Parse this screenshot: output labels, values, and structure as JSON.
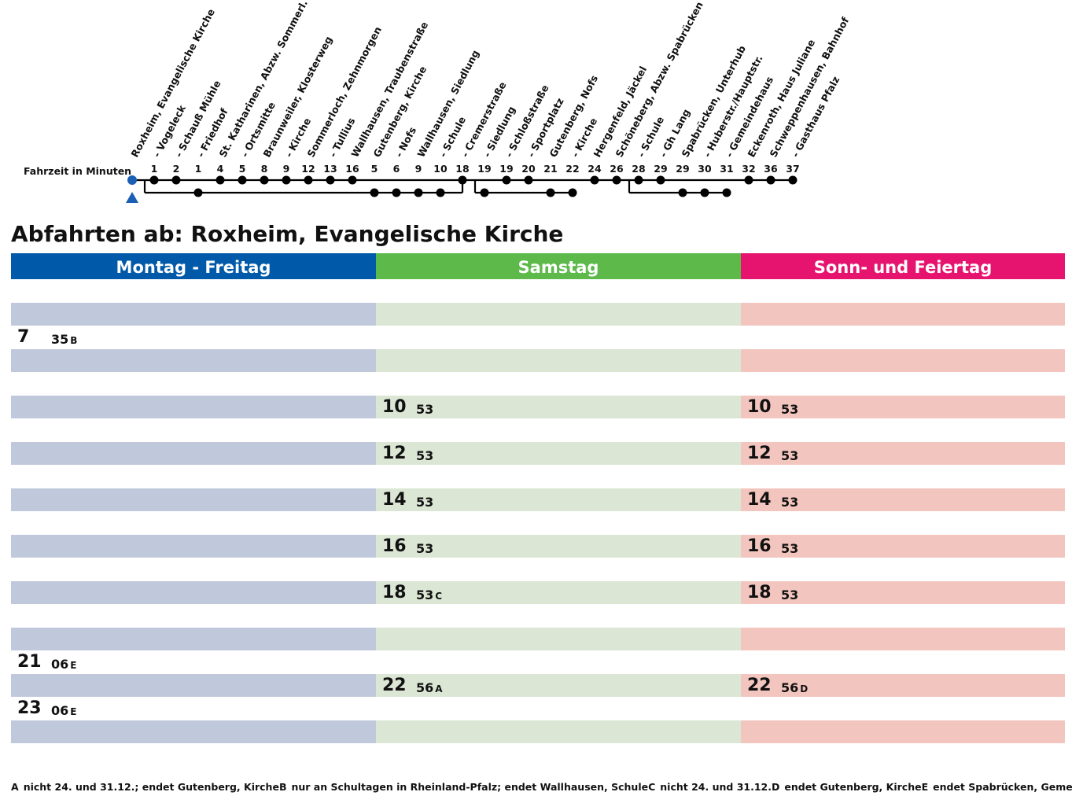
{
  "route": {
    "travel_time_label": "Fahrzeit in Minuten",
    "stops": [
      {
        "name": "Roxheim, Evangelische Kirche",
        "minutes": ""
      },
      {
        "name": "- Vogeleck",
        "minutes": "1"
      },
      {
        "name": "- Schauß Mühle",
        "minutes": "2"
      },
      {
        "name": "- Friedhof",
        "minutes": "1"
      },
      {
        "name": "St. Katharinen, Abzw. Sommerl.",
        "minutes": "4"
      },
      {
        "name": "- Ortsmitte",
        "minutes": "5"
      },
      {
        "name": "Braunweiler, Klosterweg",
        "minutes": "8"
      },
      {
        "name": "- Kirche",
        "minutes": "9"
      },
      {
        "name": "Sommerloch, Zehnmorgen",
        "minutes": "12"
      },
      {
        "name": "- Tullius",
        "minutes": "13"
      },
      {
        "name": "Wallhausen, Traubenstraße",
        "minutes": "16"
      },
      {
        "name": "Gutenberg, Kirche",
        "minutes": "5"
      },
      {
        "name": "- Nofs",
        "minutes": "6"
      },
      {
        "name": "Wallhausen, Siedlung",
        "minutes": "9"
      },
      {
        "name": "- Schule",
        "minutes": "10"
      },
      {
        "name": "- Cremerstraße",
        "minutes": "18"
      },
      {
        "name": "- Siedlung",
        "minutes": "19"
      },
      {
        "name": "- Schloßstraße",
        "minutes": "19"
      },
      {
        "name": "- Sportplatz",
        "minutes": "20"
      },
      {
        "name": "Gutenberg, Nofs",
        "minutes": "21"
      },
      {
        "name": "- Kirche",
        "minutes": "22"
      },
      {
        "name": "Hergenfeld, Jäckel",
        "minutes": "24"
      },
      {
        "name": "Schöneberg, Abzw. Spabrücken",
        "minutes": "26"
      },
      {
        "name": "- Schule",
        "minutes": "28"
      },
      {
        "name": "- Gh Lang",
        "minutes": "29"
      },
      {
        "name": "Spabrücken, Unterhub",
        "minutes": "29"
      },
      {
        "name": "- Huberstr./Hauptstr.",
        "minutes": "30"
      },
      {
        "name": "- Gemeindehaus",
        "minutes": "31"
      },
      {
        "name": "Eckenroth, Haus Juliane",
        "minutes": "32"
      },
      {
        "name": "Schweppenhausen, Bahnhof",
        "minutes": "36"
      },
      {
        "name": "- Gasthaus Pfalz",
        "minutes": "37"
      }
    ],
    "colors": {
      "line": "#000000",
      "origin": "#1a5fb4"
    }
  },
  "title": "Abfahrten ab: Roxheim, Evangelische Kirche",
  "columns": [
    {
      "label": "Montag - Freitag",
      "header_color": "#0059a9",
      "shade_color": "#c0c9dc",
      "rows": [
        {
          "hour": "",
          "mins": "",
          "note": ""
        },
        {
          "hour": "",
          "mins": "",
          "note": ""
        },
        {
          "hour": "7",
          "mins": "35",
          "note": "B"
        },
        {
          "hour": "",
          "mins": "",
          "note": ""
        },
        {
          "hour": "",
          "mins": "",
          "note": ""
        },
        {
          "hour": "",
          "mins": "",
          "note": ""
        },
        {
          "hour": "",
          "mins": "",
          "note": ""
        },
        {
          "hour": "",
          "mins": "",
          "note": ""
        },
        {
          "hour": "",
          "mins": "",
          "note": ""
        },
        {
          "hour": "",
          "mins": "",
          "note": ""
        },
        {
          "hour": "",
          "mins": "",
          "note": ""
        },
        {
          "hour": "",
          "mins": "",
          "note": ""
        },
        {
          "hour": "",
          "mins": "",
          "note": ""
        },
        {
          "hour": "",
          "mins": "",
          "note": ""
        },
        {
          "hour": "",
          "mins": "",
          "note": ""
        },
        {
          "hour": "",
          "mins": "",
          "note": ""
        },
        {
          "hour": "21",
          "mins": "06",
          "note": "E"
        },
        {
          "hour": "",
          "mins": "",
          "note": ""
        },
        {
          "hour": "23",
          "mins": "06",
          "note": "E"
        },
        {
          "hour": "",
          "mins": "",
          "note": ""
        }
      ]
    },
    {
      "label": "Samstag",
      "header_color": "#5cb94a",
      "shade_color": "#dbe6d4",
      "rows": [
        {
          "hour": "",
          "mins": "",
          "note": ""
        },
        {
          "hour": "",
          "mins": "",
          "note": ""
        },
        {
          "hour": "",
          "mins": "",
          "note": ""
        },
        {
          "hour": "",
          "mins": "",
          "note": ""
        },
        {
          "hour": "",
          "mins": "",
          "note": ""
        },
        {
          "hour": "10",
          "mins": "53",
          "note": ""
        },
        {
          "hour": "",
          "mins": "",
          "note": ""
        },
        {
          "hour": "12",
          "mins": "53",
          "note": ""
        },
        {
          "hour": "",
          "mins": "",
          "note": ""
        },
        {
          "hour": "14",
          "mins": "53",
          "note": ""
        },
        {
          "hour": "",
          "mins": "",
          "note": ""
        },
        {
          "hour": "16",
          "mins": "53",
          "note": ""
        },
        {
          "hour": "",
          "mins": "",
          "note": ""
        },
        {
          "hour": "18",
          "mins": "53",
          "note": "C"
        },
        {
          "hour": "",
          "mins": "",
          "note": ""
        },
        {
          "hour": "",
          "mins": "",
          "note": ""
        },
        {
          "hour": "",
          "mins": "",
          "note": ""
        },
        {
          "hour": "22",
          "mins": "56",
          "note": "A"
        },
        {
          "hour": "",
          "mins": "",
          "note": ""
        },
        {
          "hour": "",
          "mins": "",
          "note": ""
        }
      ]
    },
    {
      "label": "Sonn- und Feiertag",
      "header_color": "#e6146e",
      "shade_color": "#f2c6be",
      "rows": [
        {
          "hour": "",
          "mins": "",
          "note": ""
        },
        {
          "hour": "",
          "mins": "",
          "note": ""
        },
        {
          "hour": "",
          "mins": "",
          "note": ""
        },
        {
          "hour": "",
          "mins": "",
          "note": ""
        },
        {
          "hour": "",
          "mins": "",
          "note": ""
        },
        {
          "hour": "10",
          "mins": "53",
          "note": ""
        },
        {
          "hour": "",
          "mins": "",
          "note": ""
        },
        {
          "hour": "12",
          "mins": "53",
          "note": ""
        },
        {
          "hour": "",
          "mins": "",
          "note": ""
        },
        {
          "hour": "14",
          "mins": "53",
          "note": ""
        },
        {
          "hour": "",
          "mins": "",
          "note": ""
        },
        {
          "hour": "16",
          "mins": "53",
          "note": ""
        },
        {
          "hour": "",
          "mins": "",
          "note": ""
        },
        {
          "hour": "18",
          "mins": "53",
          "note": ""
        },
        {
          "hour": "",
          "mins": "",
          "note": ""
        },
        {
          "hour": "",
          "mins": "",
          "note": ""
        },
        {
          "hour": "",
          "mins": "",
          "note": ""
        },
        {
          "hour": "22",
          "mins": "56",
          "note": "D"
        },
        {
          "hour": "",
          "mins": "",
          "note": ""
        },
        {
          "hour": "",
          "mins": "",
          "note": ""
        }
      ]
    }
  ],
  "footnotes": [
    {
      "key": "A",
      "text": "nicht 24. und 31.12.; endet Gutenberg, Kirche"
    },
    {
      "key": "B",
      "text": "nur an Schultagen in Rheinland-Pfalz; endet Wallhausen, Schule"
    },
    {
      "key": "C",
      "text": "nicht 24. und 31.12."
    },
    {
      "key": "D",
      "text": "endet Gutenberg, Kirche"
    },
    {
      "key": "E",
      "text": "endet Spabrücken, Gemeindehaus"
    }
  ]
}
